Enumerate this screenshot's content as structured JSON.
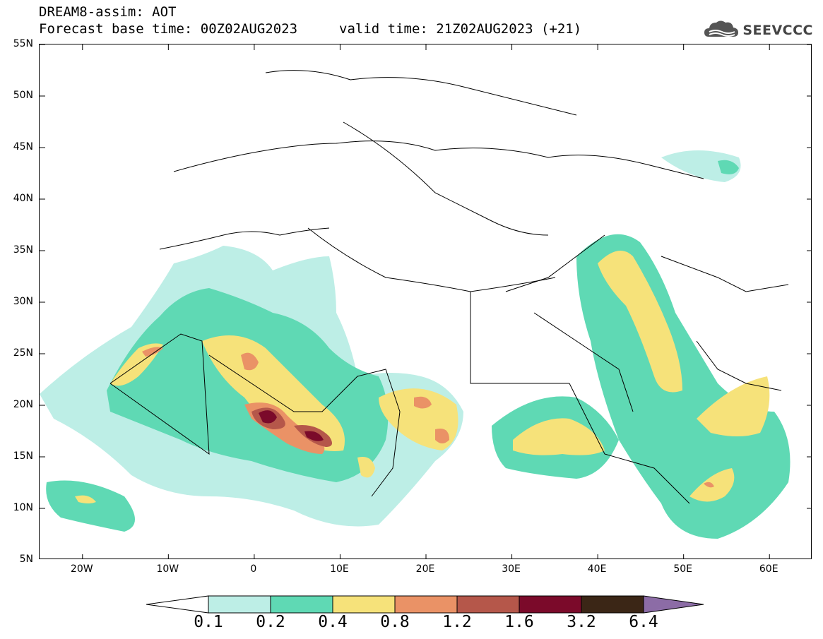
{
  "header": {
    "title_line1": "DREAM8-assim: AOT",
    "title_line2": "Forecast base time: 00Z02AUG2023",
    "valid_time": "valid time: 21Z02AUG2023 (+21)"
  },
  "logo": {
    "text": "SEEVCCC",
    "icon": "cloud-icon"
  },
  "map": {
    "lat_labels": [
      "55N",
      "50N",
      "45N",
      "40N",
      "35N",
      "30N",
      "25N",
      "20N",
      "15N",
      "10N",
      "5N"
    ],
    "lat_values": [
      55,
      50,
      45,
      40,
      35,
      30,
      25,
      20,
      15,
      10,
      5
    ],
    "lon_labels": [
      "20W",
      "10W",
      "0",
      "10E",
      "20E",
      "30E",
      "40E",
      "50E",
      "60E"
    ],
    "lon_values": [
      -20,
      -10,
      0,
      10,
      20,
      30,
      40,
      50,
      60
    ],
    "lon_range": [
      -25,
      65
    ],
    "lat_range": [
      5,
      55
    ]
  },
  "colorbar": {
    "labels": [
      "0.1",
      "0.2",
      "0.4",
      "0.8",
      "1.2",
      "1.6",
      "3.2",
      "6.4"
    ],
    "colors": {
      "below": "#ffffff",
      "c1": "#bdeee6",
      "c2": "#5fd9b4",
      "c3": "#f6e27a",
      "c4": "#ea9266",
      "c5": "#b5574a",
      "c6": "#7b0a2a",
      "c7": "#3b2616",
      "above": "#8c6ca6"
    }
  }
}
